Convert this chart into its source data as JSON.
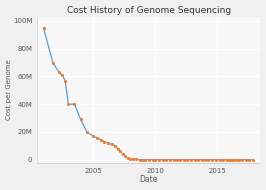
{
  "title": "Cost History of Genome Sequencing",
  "xlabel": "Date",
  "ylabel": "Cost per Genome",
  "background_color": "#f0f0f0",
  "plot_bg_color": "#f7f7f7",
  "grid_color": "#ffffff",
  "line_color": "#5b9bd5",
  "marker_color": "#ed7d31",
  "data": [
    [
      2001.0,
      95000000
    ],
    [
      2001.75,
      70000000
    ],
    [
      2002.25,
      63000000
    ],
    [
      2002.5,
      61000000
    ],
    [
      2002.75,
      57000000
    ],
    [
      2003.0,
      40000000
    ],
    [
      2003.5,
      40000000
    ],
    [
      2004.0,
      29000000
    ],
    [
      2004.5,
      20000000
    ],
    [
      2005.0,
      17000000
    ],
    [
      2005.3,
      16000000
    ],
    [
      2005.6,
      14500000
    ],
    [
      2005.9,
      13000000
    ],
    [
      2006.2,
      12000000
    ],
    [
      2006.5,
      11000000
    ],
    [
      2006.8,
      10000000
    ],
    [
      2007.0,
      8000000
    ],
    [
      2007.2,
      6000000
    ],
    [
      2007.4,
      4000000
    ],
    [
      2007.6,
      2500000
    ],
    [
      2007.8,
      1200000
    ],
    [
      2008.0,
      600000
    ],
    [
      2008.2,
      350000
    ],
    [
      2008.5,
      200000
    ],
    [
      2008.8,
      80000
    ],
    [
      2009.0,
      50000
    ],
    [
      2009.2,
      30000
    ],
    [
      2009.5,
      20000
    ],
    [
      2009.8,
      15000
    ],
    [
      2010.0,
      12000
    ],
    [
      2010.3,
      10000
    ],
    [
      2010.6,
      9000
    ],
    [
      2010.9,
      8000
    ],
    [
      2011.2,
      7500
    ],
    [
      2011.5,
      7000
    ],
    [
      2011.8,
      6500
    ],
    [
      2012.0,
      6000
    ],
    [
      2012.3,
      5800
    ],
    [
      2012.6,
      5500
    ],
    [
      2012.9,
      5200
    ],
    [
      2013.2,
      5000
    ],
    [
      2013.5,
      4800
    ],
    [
      2013.8,
      4600
    ],
    [
      2014.0,
      4500
    ],
    [
      2014.3,
      4400
    ],
    [
      2014.6,
      4300
    ],
    [
      2014.9,
      4200
    ],
    [
      2015.2,
      4100
    ],
    [
      2015.5,
      4000
    ],
    [
      2015.8,
      3800
    ],
    [
      2016.0,
      3500
    ],
    [
      2016.1,
      1200
    ],
    [
      2016.2,
      1100
    ],
    [
      2016.4,
      1000
    ],
    [
      2016.6,
      1000
    ],
    [
      2016.8,
      1000
    ],
    [
      2017.0,
      1000
    ],
    [
      2017.3,
      1000
    ],
    [
      2017.6,
      1000
    ],
    [
      2017.9,
      900
    ]
  ],
  "yticks": [
    0,
    20000000,
    40000000,
    60000000,
    80000000,
    100000000
  ],
  "ytick_labels": [
    "0",
    "20M",
    "40M",
    "60M",
    "80M",
    "100M"
  ],
  "xticks": [
    2005,
    2010,
    2015
  ],
  "xlim": [
    2000.5,
    2018.5
  ],
  "ylim": [
    -2500000,
    103000000
  ]
}
